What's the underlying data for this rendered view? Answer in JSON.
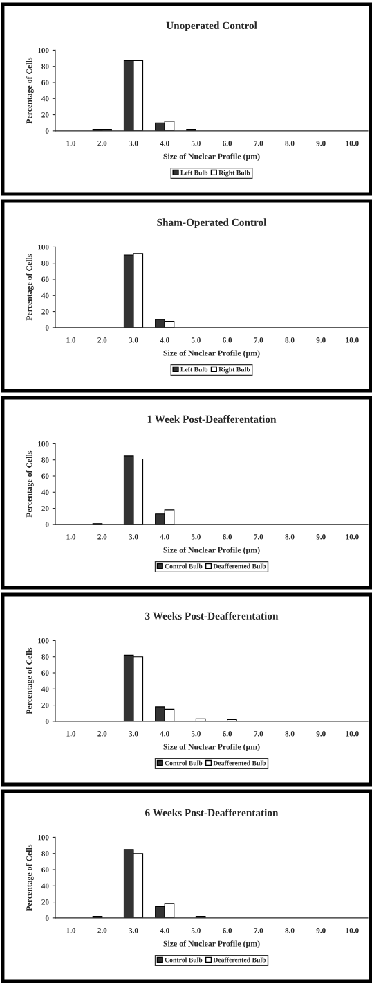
{
  "chart_data": [
    {
      "type": "bar",
      "title": "Unoperated Control",
      "xlabel": "Size of Nuclear Profile (µm)",
      "ylabel": "Percentage of Cells",
      "categories": [
        "1.0",
        "2.0",
        "3.0",
        "4.0",
        "5.0",
        "6.0",
        "7.0",
        "8.0",
        "9.0",
        "10.0"
      ],
      "ylim": [
        0,
        100
      ],
      "yticks": [
        0,
        20,
        40,
        60,
        80,
        100
      ],
      "legend": "bottom",
      "series": [
        {
          "name": "Left Bulb",
          "color": "#333333",
          "values": [
            0,
            2,
            87,
            10,
            2,
            0,
            0,
            0,
            0,
            0
          ]
        },
        {
          "name": "Right Bulb",
          "color": "#ffffff",
          "values": [
            0,
            2,
            87,
            12,
            0,
            0,
            0,
            0,
            0,
            0
          ]
        }
      ]
    },
    {
      "type": "bar",
      "title": "Sham-Operated Control",
      "xlabel": "Size of Nuclear Profile (µm)",
      "ylabel": "Percentage of Cells",
      "categories": [
        "1.0",
        "2.0",
        "3.0",
        "4.0",
        "5.0",
        "6.0",
        "7.0",
        "8.0",
        "9.0",
        "10.0"
      ],
      "ylim": [
        0,
        100
      ],
      "yticks": [
        0,
        20,
        40,
        60,
        80,
        100
      ],
      "legend": "bottom",
      "series": [
        {
          "name": "Left Bulb",
          "color": "#333333",
          "values": [
            0,
            0,
            90,
            10,
            0,
            0,
            0,
            0,
            0,
            0
          ]
        },
        {
          "name": "Right Bulb",
          "color": "#ffffff",
          "values": [
            0,
            0,
            92,
            8,
            0,
            0,
            0,
            0,
            0,
            0
          ]
        }
      ]
    },
    {
      "type": "bar",
      "title": "1 Week Post-Deafferentation",
      "xlabel": "Size of Nuclear Profile (µm)",
      "ylabel": "Percentage of Cells",
      "categories": [
        "1.0",
        "2.0",
        "3.0",
        "4.0",
        "5.0",
        "6.0",
        "7.0",
        "8.0",
        "9.0",
        "10.0"
      ],
      "ylim": [
        0,
        100
      ],
      "yticks": [
        0,
        20,
        40,
        60,
        80,
        100
      ],
      "legend": "bottom",
      "series": [
        {
          "name": "Control Bulb",
          "color": "#333333",
          "values": [
            0,
            1,
            85,
            13,
            0,
            0,
            0,
            0,
            0,
            0
          ]
        },
        {
          "name": "Deafferented Bulb",
          "color": "#ffffff",
          "values": [
            0,
            0,
            81,
            18,
            0,
            0,
            0,
            0,
            0,
            0
          ]
        }
      ]
    },
    {
      "type": "bar",
      "title": "3 Weeks Post-Deafferentation",
      "xlabel": "Size of Nuclear Profile (µm)",
      "ylabel": "Percentage of Cells",
      "categories": [
        "1.0",
        "2.0",
        "3.0",
        "4.0",
        "5.0",
        "6.0",
        "7.0",
        "8.0",
        "9.0",
        "10.0"
      ],
      "ylim": [
        0,
        100
      ],
      "yticks": [
        0,
        20,
        40,
        60,
        80,
        100
      ],
      "legend": "bottom",
      "series": [
        {
          "name": "Control Bulb",
          "color": "#333333",
          "values": [
            0,
            0,
            82,
            18,
            0,
            0,
            0,
            0,
            0,
            0
          ]
        },
        {
          "name": "Deafferented Bulb",
          "color": "#ffffff",
          "values": [
            0,
            0,
            80,
            15,
            3,
            2,
            0,
            0,
            0,
            0
          ]
        }
      ]
    },
    {
      "type": "bar",
      "title": "6 Weeks Post-Deafferentation",
      "xlabel": "Size of Nuclear Profile (µm)",
      "ylabel": "Percentage of Cells",
      "categories": [
        "1.0",
        "2.0",
        "3.0",
        "4.0",
        "5.0",
        "6.0",
        "7.0",
        "8.0",
        "9.0",
        "10.0"
      ],
      "ylim": [
        0,
        100
      ],
      "yticks": [
        0,
        20,
        40,
        60,
        80,
        100
      ],
      "legend": "bottom",
      "series": [
        {
          "name": "Control Bulb",
          "color": "#333333",
          "values": [
            0,
            2,
            85,
            14,
            0,
            0,
            0,
            0,
            0,
            0
          ]
        },
        {
          "name": "Deafferented Bulb",
          "color": "#ffffff",
          "values": [
            0,
            0,
            80,
            18,
            2,
            0,
            0,
            0,
            0,
            0
          ]
        }
      ]
    }
  ]
}
